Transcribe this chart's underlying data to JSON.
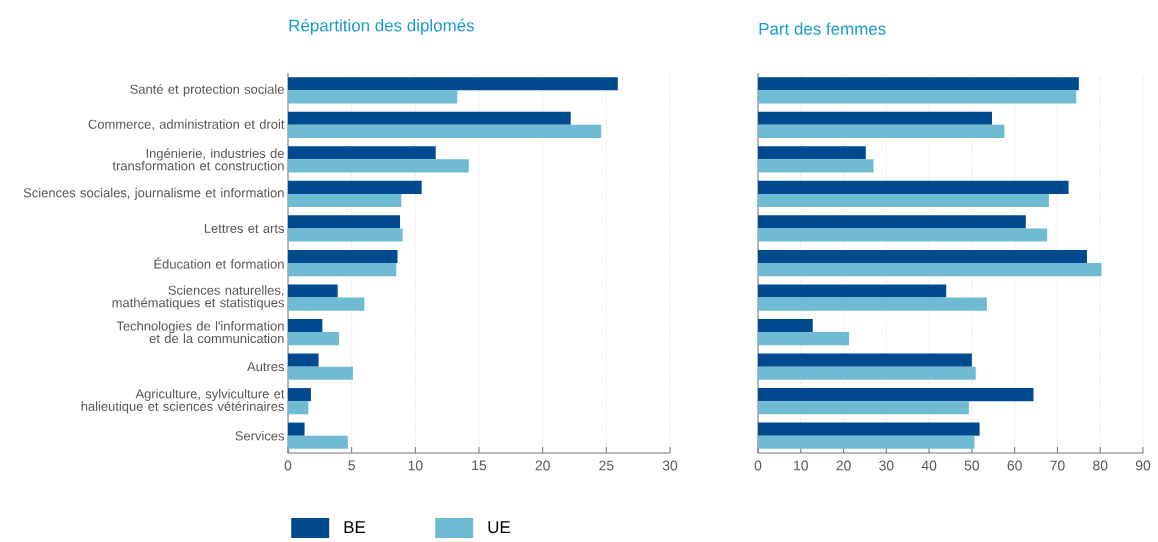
{
  "chart_data": [
    {
      "type": "bar",
      "orientation": "horizontal",
      "title": "Répartition des diplomés",
      "categories": [
        "Santé et protection sociale",
        "Commerce, administration et droit",
        "Ingénierie, industries de transformation et construction",
        "Sciences sociales, journalisme et information",
        "Lettres et arts",
        "Éducation et formation",
        "Sciences naturelles, mathématiques et statistiques",
        "Technologies de l'information et de la communication",
        "Autres",
        "Agriculture, sylviculture et halieutique et sciences vétérinaires",
        "Services"
      ],
      "series": [
        {
          "name": "BE",
          "color": "#004a8f",
          "values": [
            25.9,
            22.2,
            11.6,
            10.5,
            8.8,
            8.6,
            3.9,
            2.7,
            2.4,
            1.8,
            1.3
          ]
        },
        {
          "name": "UE",
          "color": "#6fbbd3",
          "values": [
            13.3,
            24.6,
            14.2,
            8.9,
            9.0,
            8.5,
            6.0,
            4.0,
            5.1,
            1.6,
            4.7
          ]
        }
      ],
      "xlim": [
        0,
        30
      ],
      "xticks": [
        0,
        5,
        10,
        15,
        20,
        25,
        30
      ],
      "grid": "x",
      "legend": "bottom left"
    },
    {
      "type": "bar",
      "orientation": "horizontal",
      "title": "Part des femmes",
      "series": [
        {
          "color": "#004a8f",
          "values": [
            75.0,
            54.7,
            25.2,
            72.6,
            62.6,
            76.9,
            44.0,
            12.8,
            50.0,
            64.4,
            51.8
          ]
        },
        {
          "color": "#6fbbd3",
          "values": [
            74.4,
            57.6,
            27.0,
            68.0,
            67.6,
            80.3,
            53.5,
            21.3,
            50.9,
            49.3,
            50.6
          ]
        }
      ],
      "xlim": [
        0,
        90
      ],
      "xticks": [
        0,
        10,
        20,
        30,
        40,
        50,
        60,
        70,
        80,
        90
      ],
      "grid": "x",
      "tick_labels": "x"
    }
  ]
}
